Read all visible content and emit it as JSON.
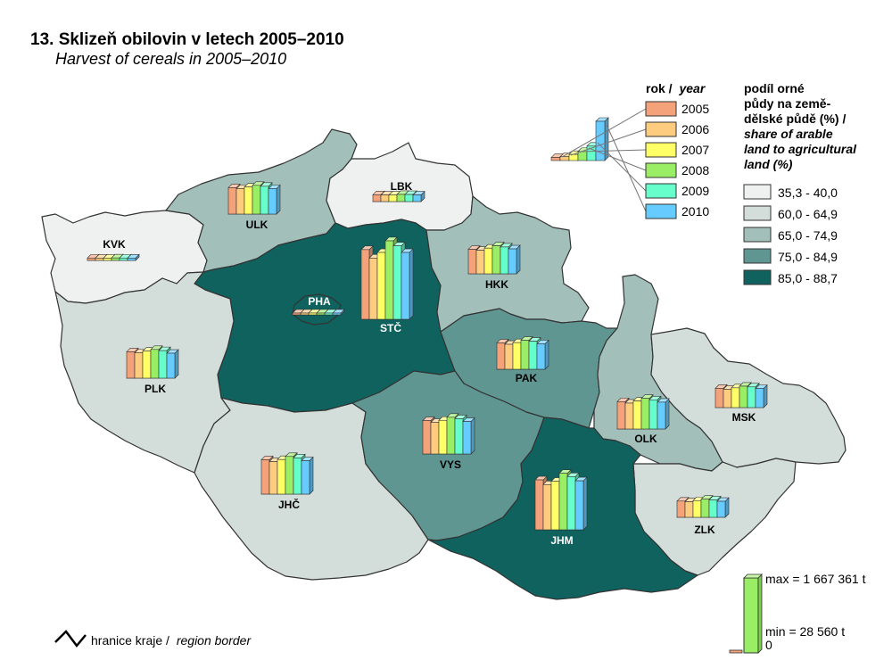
{
  "title": "13. Sklizeň obilovin v letech 2005–2010",
  "subtitle": "Harvest of cereals in 2005–2010",
  "year_legend": {
    "title_cz": "rok /",
    "title_en": "year",
    "years": [
      "2005",
      "2006",
      "2007",
      "2008",
      "2009",
      "2010"
    ],
    "colors": [
      "#f4a27a",
      "#fdcc7f",
      "#ffff66",
      "#99ee66",
      "#66ffcc",
      "#66ccff"
    ]
  },
  "share_legend": {
    "title_lines_cz": [
      "podíl orné",
      "půdy na země-",
      "dělské půdě (%) /"
    ],
    "title_lines_en": [
      "share of arable",
      "land to agricultural",
      "land (%)"
    ],
    "classes": [
      {
        "label": "35,3 - 40,0",
        "color": "#eef1f0"
      },
      {
        "label": "60,0 - 64,9",
        "color": "#d3dedb"
      },
      {
        "label": "65,0 - 74,9",
        "color": "#a2bfba"
      },
      {
        "label": "75,0 - 84,9",
        "color": "#5f9691"
      },
      {
        "label": "85,0 - 88,7",
        "color": "#0f625e"
      }
    ]
  },
  "scale_legend": {
    "max_label": "max = 1 667 361 t",
    "min_label": "min = 28 560 t",
    "zero_label": "0"
  },
  "border_legend": {
    "label_cz": "hranice kraje /",
    "label_en": "region border"
  },
  "regions": [
    {
      "code": "KVK",
      "class": 0,
      "values": [
        52,
        50,
        49,
        53,
        52,
        50
      ]
    },
    {
      "code": "ULK",
      "class": 2,
      "values": [
        560,
        540,
        575,
        610,
        590,
        540
      ]
    },
    {
      "code": "LBK",
      "class": 0,
      "values": [
        145,
        140,
        138,
        152,
        150,
        140
      ]
    },
    {
      "code": "PHA",
      "class": 4,
      "values": [
        30,
        29,
        31,
        32,
        30,
        29
      ]
    },
    {
      "code": "STČ",
      "class": 4,
      "values": [
        1480,
        1300,
        1420,
        1667,
        1560,
        1420
      ]
    },
    {
      "code": "HKK",
      "class": 2,
      "values": [
        520,
        500,
        545,
        595,
        570,
        530
      ]
    },
    {
      "code": "PLK",
      "class": 1,
      "values": [
        560,
        540,
        575,
        610,
        585,
        530
      ]
    },
    {
      "code": "PAK",
      "class": 3,
      "values": [
        560,
        530,
        565,
        615,
        595,
        540
      ]
    },
    {
      "code": "JHČ",
      "class": 1,
      "values": [
        730,
        690,
        735,
        800,
        770,
        710
      ]
    },
    {
      "code": "VYS",
      "class": 3,
      "values": [
        710,
        670,
        715,
        780,
        750,
        690
      ]
    },
    {
      "code": "OLK",
      "class": 2,
      "values": [
        580,
        550,
        595,
        650,
        620,
        570
      ]
    },
    {
      "code": "MSK",
      "class": 1,
      "values": [
        410,
        390,
        420,
        455,
        440,
        405
      ]
    },
    {
      "code": "JHM",
      "class": 4,
      "values": [
        1060,
        960,
        1030,
        1200,
        1130,
        1040
      ]
    },
    {
      "code": "ZLK",
      "class": 1,
      "values": [
        345,
        330,
        355,
        385,
        370,
        340
      ]
    }
  ],
  "scale_max_value": 1667361
}
